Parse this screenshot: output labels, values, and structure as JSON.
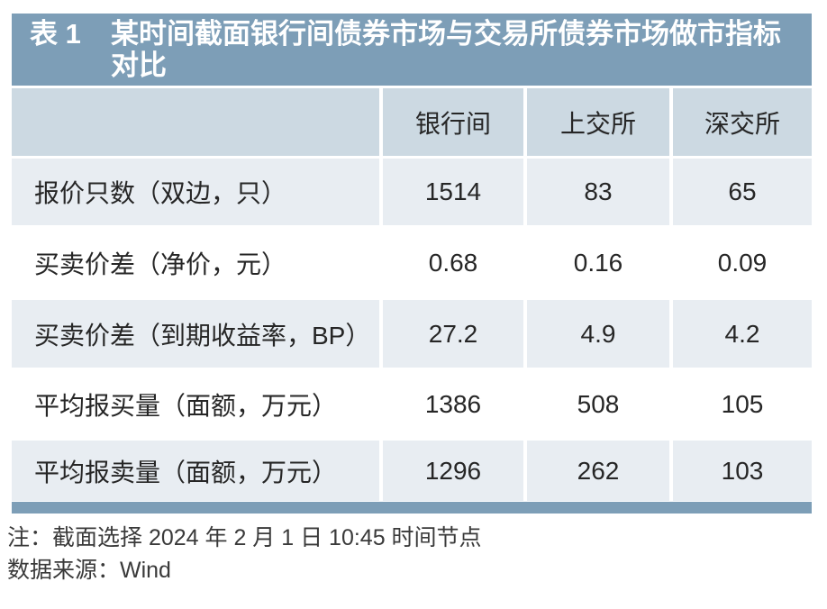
{
  "colors": {
    "bar_blue": "#7d9eb7",
    "header_bg": "#ccd9e2",
    "row_alt_bg": "#e8edf2",
    "row_white_bg": "#ffffff",
    "title_text": "#ffffff",
    "cell_text": "#262626",
    "note_text": "#3a3a3a",
    "page_bg": "#ffffff"
  },
  "table": {
    "label": "表 1",
    "title": "某时间截面银行间债券市场与交易所债券市场做市指标对比",
    "columns": [
      "",
      "银行间",
      "上交所",
      "深交所"
    ],
    "rows": [
      {
        "label": "报价只数（双边，只）",
        "values": [
          "1514",
          "83",
          "65"
        ]
      },
      {
        "label": "买卖价差（净价，元）",
        "values": [
          "0.68",
          "0.16",
          "0.09"
        ]
      },
      {
        "label": "买卖价差（到期收益率，BP）",
        "values": [
          "27.2",
          "4.9",
          "4.2"
        ]
      },
      {
        "label": "平均报买量（面额，万元）",
        "values": [
          "1386",
          "508",
          "105"
        ]
      },
      {
        "label": "平均报卖量（面额，万元）",
        "values": [
          "1296",
          "262",
          "103"
        ]
      }
    ]
  },
  "notes": {
    "note": "注：截面选择 2024 年 2 月 1 日 10:45 时间节点",
    "source": "数据来源：Wind"
  }
}
